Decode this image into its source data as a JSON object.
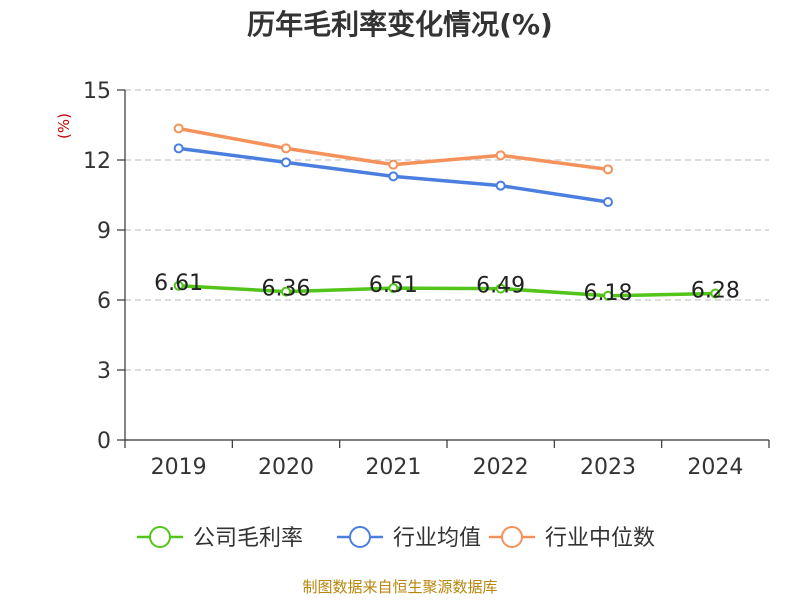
{
  "chart_data": {
    "type": "line",
    "title": "历年毛利率变化情况(%)",
    "ylabel": "(%)",
    "xlabel": "",
    "categories": [
      "2019",
      "2020",
      "2021",
      "2022",
      "2023",
      "2024"
    ],
    "ylim": [
      0,
      15
    ],
    "yticks": [
      "0",
      "3",
      "6",
      "9",
      "12",
      "15"
    ],
    "grid": "horizontal-dashed",
    "legend_position": "bottom",
    "series": [
      {
        "name": "公司毛利率",
        "color": "#52c41a",
        "values": [
          6.61,
          6.36,
          6.51,
          6.49,
          6.18,
          6.28
        ],
        "labels": [
          "6.61",
          "6.36",
          "6.51",
          "6.49",
          "6.18",
          "6.28"
        ]
      },
      {
        "name": "行业均值",
        "color": "#4a7fe0",
        "values": [
          12.5,
          11.9,
          11.3,
          10.9,
          10.2,
          null
        ]
      },
      {
        "name": "行业中位数",
        "color": "#f5915a",
        "values": [
          13.35,
          12.5,
          11.8,
          12.2,
          11.6,
          null
        ]
      }
    ]
  },
  "footer": {
    "source": "制图数据来自恒生聚源数据库"
  }
}
